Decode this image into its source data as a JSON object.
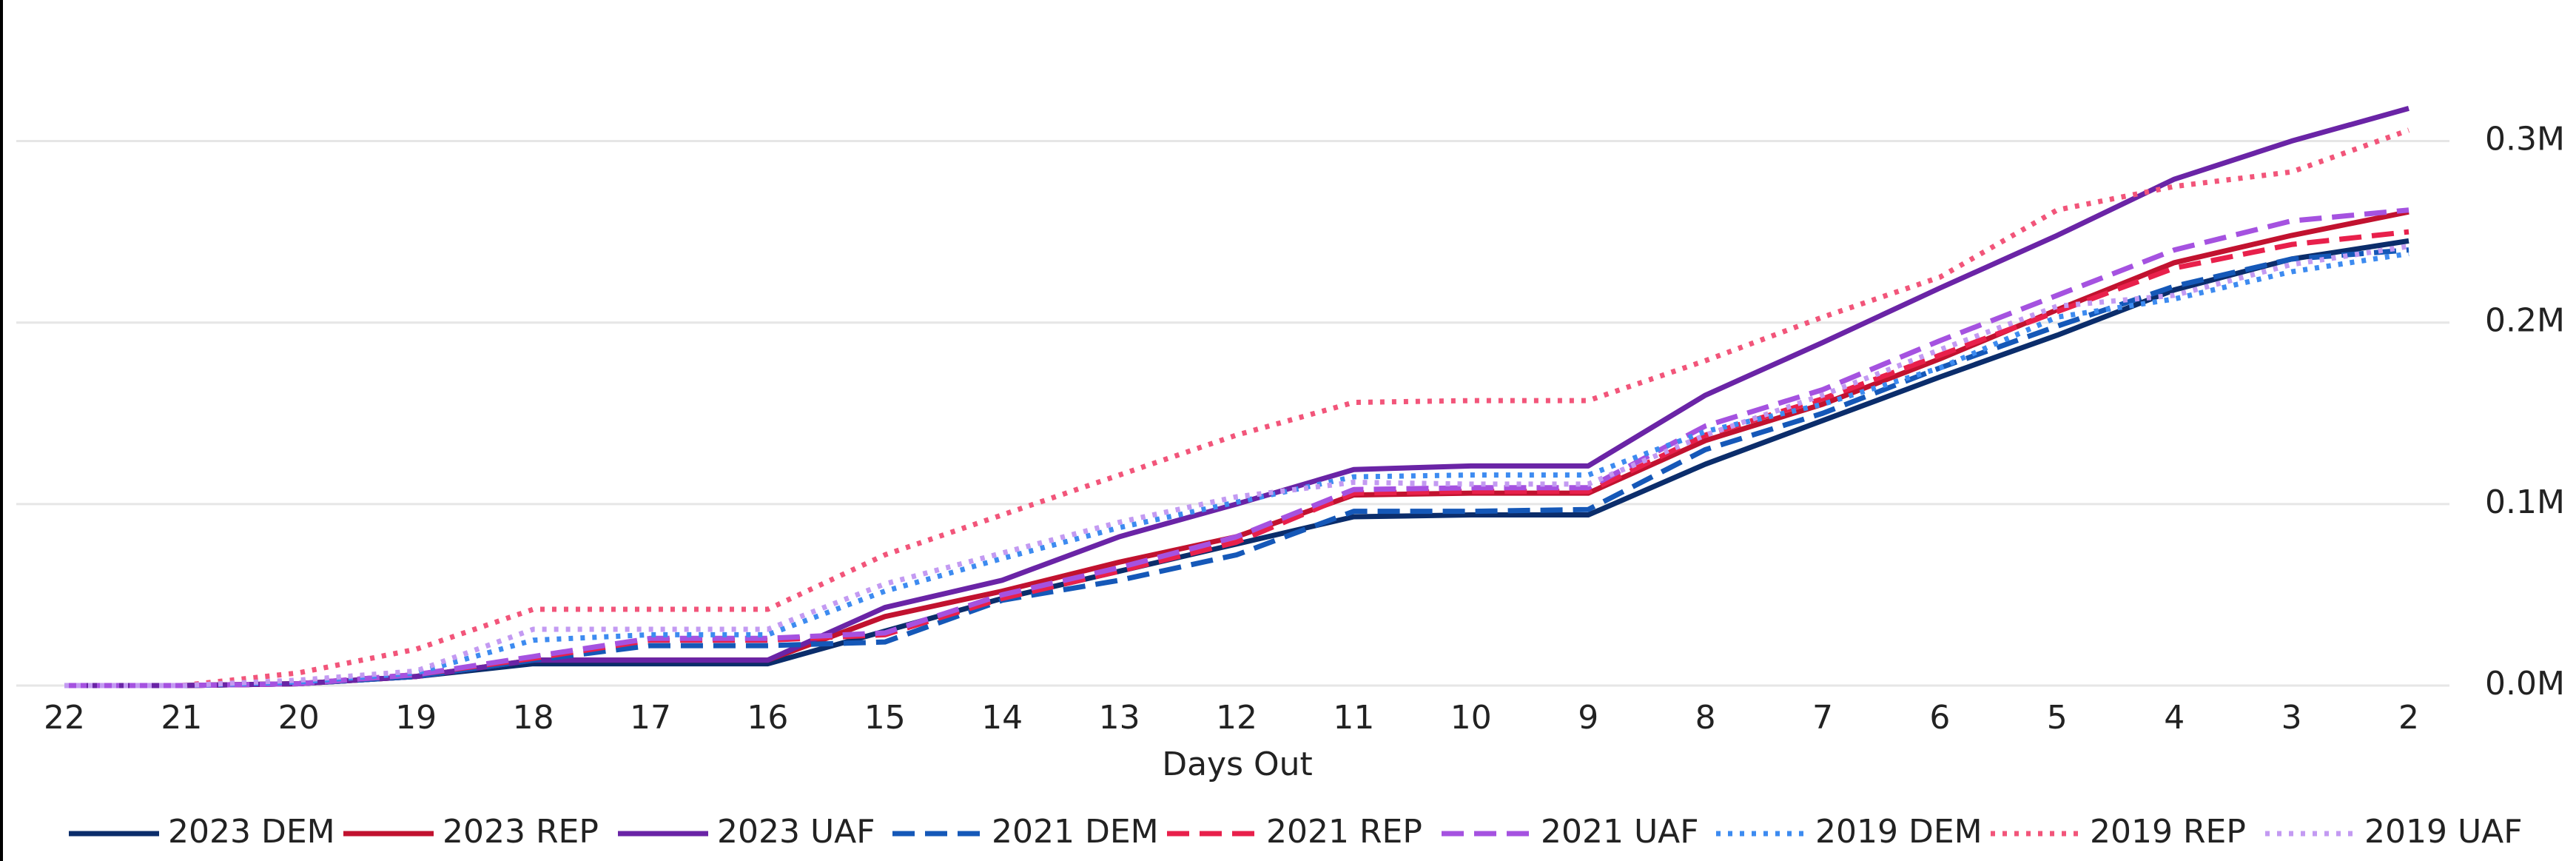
{
  "chart_data": {
    "type": "line",
    "x_label": "Days Out",
    "categories": [
      "22",
      "21",
      "20",
      "19",
      "18",
      "17",
      "16",
      "15",
      "14",
      "13",
      "12",
      "11",
      "10",
      "9",
      "8",
      "7",
      "6",
      "5",
      "4",
      "3",
      "2"
    ],
    "ylim": [
      0,
      330000
    ],
    "yticks": [
      {
        "value": 0,
        "label": "0.0M"
      },
      {
        "value": 100000,
        "label": "0.1M"
      },
      {
        "value": 200000,
        "label": "0.2M"
      },
      {
        "value": 300000,
        "label": "0.3M"
      }
    ],
    "grid": true,
    "y_axis_side": "right",
    "legend": "bottom",
    "series": [
      {
        "name": "2023 DEM",
        "color": "#0b2d6b",
        "dash": "solid",
        "values": [
          0,
          0,
          1000,
          5000,
          12000,
          12000,
          12000,
          30000,
          48000,
          63000,
          78000,
          93000,
          94000,
          94000,
          122000,
          146000,
          170000,
          193000,
          218000,
          235000,
          245000
        ]
      },
      {
        "name": "2023 REP",
        "color": "#c1122f",
        "dash": "solid",
        "values": [
          0,
          0,
          1000,
          5000,
          14000,
          14000,
          14000,
          38000,
          52000,
          68000,
          82000,
          105000,
          106000,
          106000,
          135000,
          155000,
          180000,
          207000,
          233000,
          248000,
          261000
        ]
      },
      {
        "name": "2023 UAF",
        "color": "#6a24a6",
        "dash": "solid",
        "values": [
          0,
          0,
          1000,
          5000,
          14000,
          14000,
          14000,
          43000,
          58000,
          82000,
          100000,
          119000,
          121000,
          121000,
          160000,
          189000,
          219000,
          248000,
          279000,
          300000,
          318000
        ]
      },
      {
        "name": "2021 DEM",
        "color": "#1558b8",
        "dash": "dashed",
        "values": [
          0,
          0,
          1000,
          5000,
          14000,
          22000,
          22000,
          24000,
          47000,
          58000,
          72000,
          96000,
          96000,
          97000,
          130000,
          150000,
          175000,
          198000,
          220000,
          235000,
          240000
        ]
      },
      {
        "name": "2021 REP",
        "color": "#e8204b",
        "dash": "dashed",
        "values": [
          0,
          0,
          1000,
          6000,
          15000,
          25000,
          25000,
          28000,
          48000,
          63000,
          79000,
          106000,
          107000,
          107000,
          138000,
          158000,
          182000,
          206000,
          230000,
          243000,
          250000
        ]
      },
      {
        "name": "2021 UAF",
        "color": "#a552e0",
        "dash": "dashed",
        "values": [
          0,
          0,
          1000,
          6000,
          16000,
          26000,
          26000,
          29000,
          50000,
          65000,
          82000,
          108000,
          109000,
          109000,
          143000,
          163000,
          190000,
          215000,
          240000,
          256000,
          262000
        ]
      },
      {
        "name": "2019 DEM",
        "color": "#3d8bf0",
        "dash": "dotted",
        "values": [
          0,
          0,
          2000,
          7000,
          25000,
          28000,
          28000,
          52000,
          70000,
          87000,
          101000,
          115000,
          116000,
          116000,
          140000,
          155000,
          175000,
          203000,
          213000,
          228000,
          238000
        ]
      },
      {
        "name": "2019 REP",
        "color": "#f2557a",
        "dash": "dotted",
        "values": [
          0,
          0,
          7000,
          20000,
          42000,
          42000,
          42000,
          72000,
          94000,
          116000,
          138000,
          156000,
          157000,
          157000,
          179000,
          203000,
          225000,
          262000,
          275000,
          283000,
          306000
        ]
      },
      {
        "name": "2019 UAF",
        "color": "#c39af2",
        "dash": "dotted",
        "values": [
          0,
          0,
          3000,
          8000,
          31000,
          31000,
          31000,
          56000,
          73000,
          90000,
          104000,
          112000,
          111000,
          111000,
          138000,
          160000,
          185000,
          209000,
          215000,
          232000,
          242000
        ]
      }
    ]
  }
}
